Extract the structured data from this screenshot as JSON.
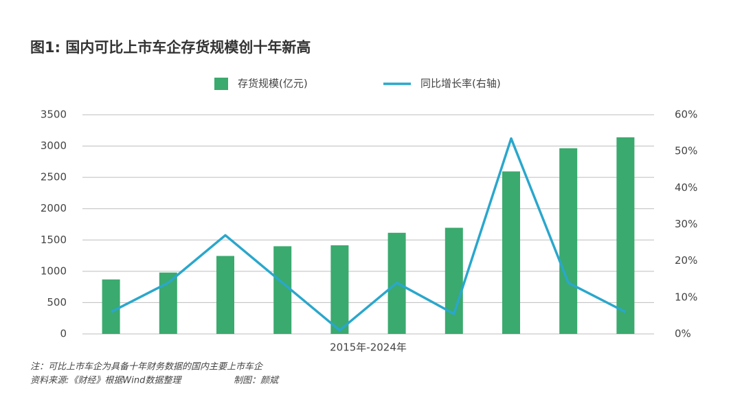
{
  "chart_data": {
    "type": "combo",
    "title": "图1: 国内可比上市车企存货规模创十年新高",
    "x_label": "2015年-2024年",
    "categories": [
      null,
      null,
      null,
      null,
      null,
      null,
      null,
      null,
      null,
      null
    ],
    "series": [
      {
        "name": "存货规模(亿元)",
        "type": "bar",
        "color": "#3aaa6e",
        "values": [
          870,
          980,
          1245,
          1400,
          1415,
          1615,
          1695,
          2595,
          2965,
          3140
        ]
      },
      {
        "name": "同比增长率(右轴)",
        "type": "line",
        "axis": "y2",
        "color": "#2aa7cc",
        "values": [
          6,
          14,
          27,
          14,
          1,
          14,
          5.5,
          53.5,
          14,
          6
        ]
      }
    ],
    "ylim": [
      0,
      3500
    ],
    "yticks": [
      0,
      500,
      1000,
      1500,
      2000,
      2500,
      3000,
      3500
    ],
    "y2lim": [
      0,
      60
    ],
    "y2ticks": [
      {
        "value": 0,
        "label": "0%"
      },
      {
        "value": 10,
        "label": "10%"
      },
      {
        "value": 20,
        "label": "20%"
      },
      {
        "value": 30,
        "label": "30%"
      },
      {
        "value": 40,
        "label": "40%"
      },
      {
        "value": 50,
        "label": "50%"
      },
      {
        "value": 60,
        "label": "60%"
      }
    ],
    "grid": true,
    "note": "注：可比上市车企为具备十年财务数据的国内主要上市车企",
    "source": "资料来源:《财经》根据Wind数据整理",
    "credit": "制图：颜斌"
  }
}
